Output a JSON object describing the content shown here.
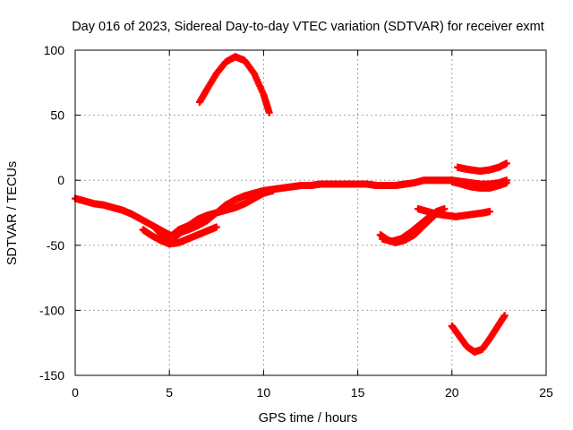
{
  "chart_data": {
    "type": "scatter",
    "title": "Day 016 of 2023, Sidereal Day-to-day VTEC variation (SDTVAR) for receiver exmt",
    "xlabel": "GPS time / hours",
    "ylabel": "SDTVAR / TECUs",
    "xlim": [
      0,
      25
    ],
    "ylim": [
      -150,
      100
    ],
    "x_ticks": [
      0,
      5,
      10,
      15,
      20,
      25
    ],
    "y_ticks": [
      -150,
      -100,
      -50,
      0,
      50,
      100
    ],
    "grid": true,
    "marker": "plus",
    "series_color": "#ff0000",
    "series": [
      {
        "name": "arc-main",
        "points": [
          [
            0,
            -14
          ],
          [
            0.5,
            -16
          ],
          [
            1,
            -18
          ],
          [
            1.5,
            -19
          ],
          [
            2,
            -21
          ],
          [
            2.5,
            -23
          ],
          [
            3,
            -26
          ],
          [
            3.5,
            -30
          ],
          [
            4,
            -34
          ],
          [
            4.5,
            -38
          ],
          [
            5,
            -42
          ],
          [
            5.3,
            -44
          ],
          [
            5.6,
            -40
          ],
          [
            6,
            -38
          ],
          [
            6.5,
            -35
          ],
          [
            7,
            -31
          ],
          [
            7.5,
            -25
          ],
          [
            8,
            -19
          ],
          [
            8.5,
            -15
          ],
          [
            9,
            -12
          ],
          [
            9.5,
            -10
          ],
          [
            10,
            -8
          ],
          [
            10.5,
            -7
          ],
          [
            11,
            -6
          ],
          [
            11.5,
            -5
          ],
          [
            12,
            -4
          ],
          [
            12.5,
            -4
          ],
          [
            13,
            -3
          ],
          [
            13.5,
            -3
          ],
          [
            14,
            -3
          ],
          [
            14.5,
            -3
          ],
          [
            15,
            -3
          ],
          [
            15.5,
            -3
          ],
          [
            16,
            -4
          ],
          [
            16.5,
            -4
          ],
          [
            17,
            -4
          ],
          [
            17.5,
            -3
          ],
          [
            18,
            -2
          ],
          [
            18.5,
            0
          ],
          [
            19,
            0
          ],
          [
            19.5,
            0
          ],
          [
            20,
            0
          ],
          [
            20.5,
            -1
          ],
          [
            21,
            -2
          ],
          [
            21.5,
            -3
          ],
          [
            22,
            -3
          ],
          [
            22.5,
            -2
          ],
          [
            22.9,
            0
          ]
        ]
      },
      {
        "name": "arc-dip",
        "points": [
          [
            3.6,
            -38
          ],
          [
            4,
            -42
          ],
          [
            4.5,
            -46
          ],
          [
            5,
            -49
          ],
          [
            5.5,
            -48
          ],
          [
            6,
            -45
          ],
          [
            6.5,
            -42
          ],
          [
            7,
            -39
          ],
          [
            7.5,
            -36
          ]
        ]
      },
      {
        "name": "arc-secondary",
        "points": [
          [
            4.2,
            -36
          ],
          [
            4.6,
            -42
          ],
          [
            5,
            -44
          ],
          [
            5.5,
            -38
          ],
          [
            6,
            -35
          ],
          [
            6.5,
            -30
          ],
          [
            7,
            -27
          ],
          [
            7.5,
            -25
          ],
          [
            8,
            -23
          ],
          [
            8.5,
            -21
          ],
          [
            9,
            -18
          ],
          [
            9.5,
            -14
          ],
          [
            10,
            -10
          ],
          [
            10.5,
            -8
          ]
        ]
      },
      {
        "name": "arc-upper",
        "points": [
          [
            6.6,
            60
          ],
          [
            7,
            70
          ],
          [
            7.5,
            82
          ],
          [
            8,
            91
          ],
          [
            8.5,
            95
          ],
          [
            9,
            92
          ],
          [
            9.5,
            82
          ],
          [
            10,
            66
          ],
          [
            10.3,
            52
          ]
        ]
      },
      {
        "name": "arc-late-high",
        "points": [
          [
            20.3,
            10
          ],
          [
            20.6,
            9
          ],
          [
            21,
            8
          ],
          [
            21.5,
            7
          ],
          [
            22,
            8
          ],
          [
            22.5,
            10
          ],
          [
            22.9,
            13
          ]
        ]
      },
      {
        "name": "arc-late-mid",
        "points": [
          [
            20,
            -1
          ],
          [
            20.5,
            -3
          ],
          [
            21,
            -5
          ],
          [
            21.5,
            -6
          ],
          [
            22,
            -6
          ],
          [
            22.5,
            -4
          ],
          [
            22.9,
            -2
          ]
        ]
      },
      {
        "name": "arc-evening-dip",
        "points": [
          [
            16.2,
            -42
          ],
          [
            16.6,
            -46
          ],
          [
            17,
            -48
          ],
          [
            17.5,
            -46
          ],
          [
            18,
            -42
          ],
          [
            18.5,
            -35
          ],
          [
            19,
            -28
          ],
          [
            19.3,
            -24
          ]
        ]
      },
      {
        "name": "arc-evening-rise",
        "points": [
          [
            16.3,
            -45
          ],
          [
            16.8,
            -47
          ],
          [
            17.3,
            -45
          ],
          [
            17.8,
            -40
          ],
          [
            18.3,
            -34
          ],
          [
            18.8,
            -28
          ],
          [
            19.2,
            -24
          ],
          [
            19.6,
            -22
          ]
        ]
      },
      {
        "name": "arc-evening-flat",
        "points": [
          [
            18.2,
            -22
          ],
          [
            18.7,
            -24
          ],
          [
            19.2,
            -26
          ],
          [
            19.7,
            -27
          ],
          [
            20.2,
            -28
          ],
          [
            20.7,
            -27
          ],
          [
            21.2,
            -26
          ],
          [
            21.7,
            -25
          ],
          [
            22,
            -24
          ]
        ]
      },
      {
        "name": "arc-low",
        "points": [
          [
            20,
            -112
          ],
          [
            20.4,
            -120
          ],
          [
            20.8,
            -128
          ],
          [
            21.2,
            -132
          ],
          [
            21.6,
            -130
          ],
          [
            22,
            -122
          ],
          [
            22.4,
            -113
          ],
          [
            22.8,
            -104
          ]
        ]
      }
    ]
  }
}
